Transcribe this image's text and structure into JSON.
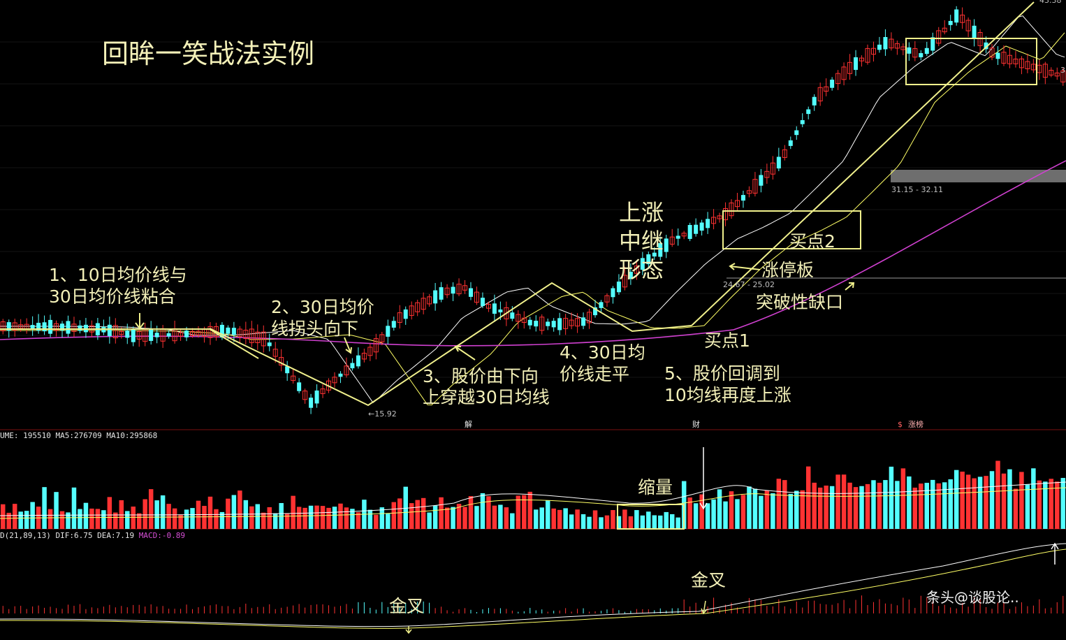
{
  "title": "回眸一笑战法实例",
  "annotations": {
    "a1_line1": "1、10日均价线与",
    "a1_line2": "30日均价线粘合",
    "a2_line1": "2、30日均价",
    "a2_line2": "线拐头向下",
    "a3_line1": "3、股价由下向",
    "a3_line2": "上穿越30日均线",
    "a4_line1": "4、30日均",
    "a4_line2": "价线走平",
    "a5_line1": "5、股价回调到",
    "a5_line2": "10均线再度上涨",
    "relay1": "上涨",
    "relay2": "中继",
    "relay3": "形态",
    "limit_up": "涨停板",
    "gap": "突破性缺口",
    "buy1": "买点1",
    "buy2": "买点2",
    "shrink": "缩量",
    "gold_cross_1": "金叉",
    "gold_cross_2": "金叉",
    "low_label": "←15.92",
    "gap_range_1": "24.67 - 25.02",
    "gap_range_2": "31.15 - 32.11",
    "top_price": "43.38",
    "right_clip": "3"
  },
  "markers": {
    "jie": "解",
    "cai": "财",
    "dollar": "$",
    "zhangbang": "涨榜"
  },
  "volume_panel": {
    "label_prefix": "UME:",
    "vol": "195510",
    "ma5_label": "MA5:",
    "ma5": "276709",
    "ma10_label": "MA10:",
    "ma10": "295868"
  },
  "macd_panel": {
    "label_prefix": "D(21,89,13)",
    "dif_label": "DIF:",
    "dif": "6.75",
    "dea_label": "DEA:",
    "dea": "7.19",
    "macd_label": "MACD:",
    "macd": "-0.89"
  },
  "watermark": "条头@谈股论..",
  "colors": {
    "up": "#ff3232",
    "down": "#54ffff",
    "ma10": "#ffffff",
    "ma30": "#ffff66",
    "ma60": "#d040d0",
    "annotation": "#f3f0b8",
    "box": "#f0f08c"
  },
  "chart_data": {
    "type": "candlestick",
    "title": "",
    "anchor_points": [
      {
        "label": "15.92",
        "value": 15.92
      },
      {
        "label": "43.38",
        "value": 43.38
      }
    ],
    "gaps": [
      {
        "low": 24.67,
        "high": 25.02
      },
      {
        "low": 31.15,
        "high": 32.11
      }
    ],
    "volume_header": {
      "VOLUME": 195510,
      "MA5": 276709,
      "MA10": 295868
    },
    "macd_header": {
      "params": "21,89,13",
      "DIF": 6.75,
      "DEA": 7.19,
      "MACD": -0.89
    }
  }
}
